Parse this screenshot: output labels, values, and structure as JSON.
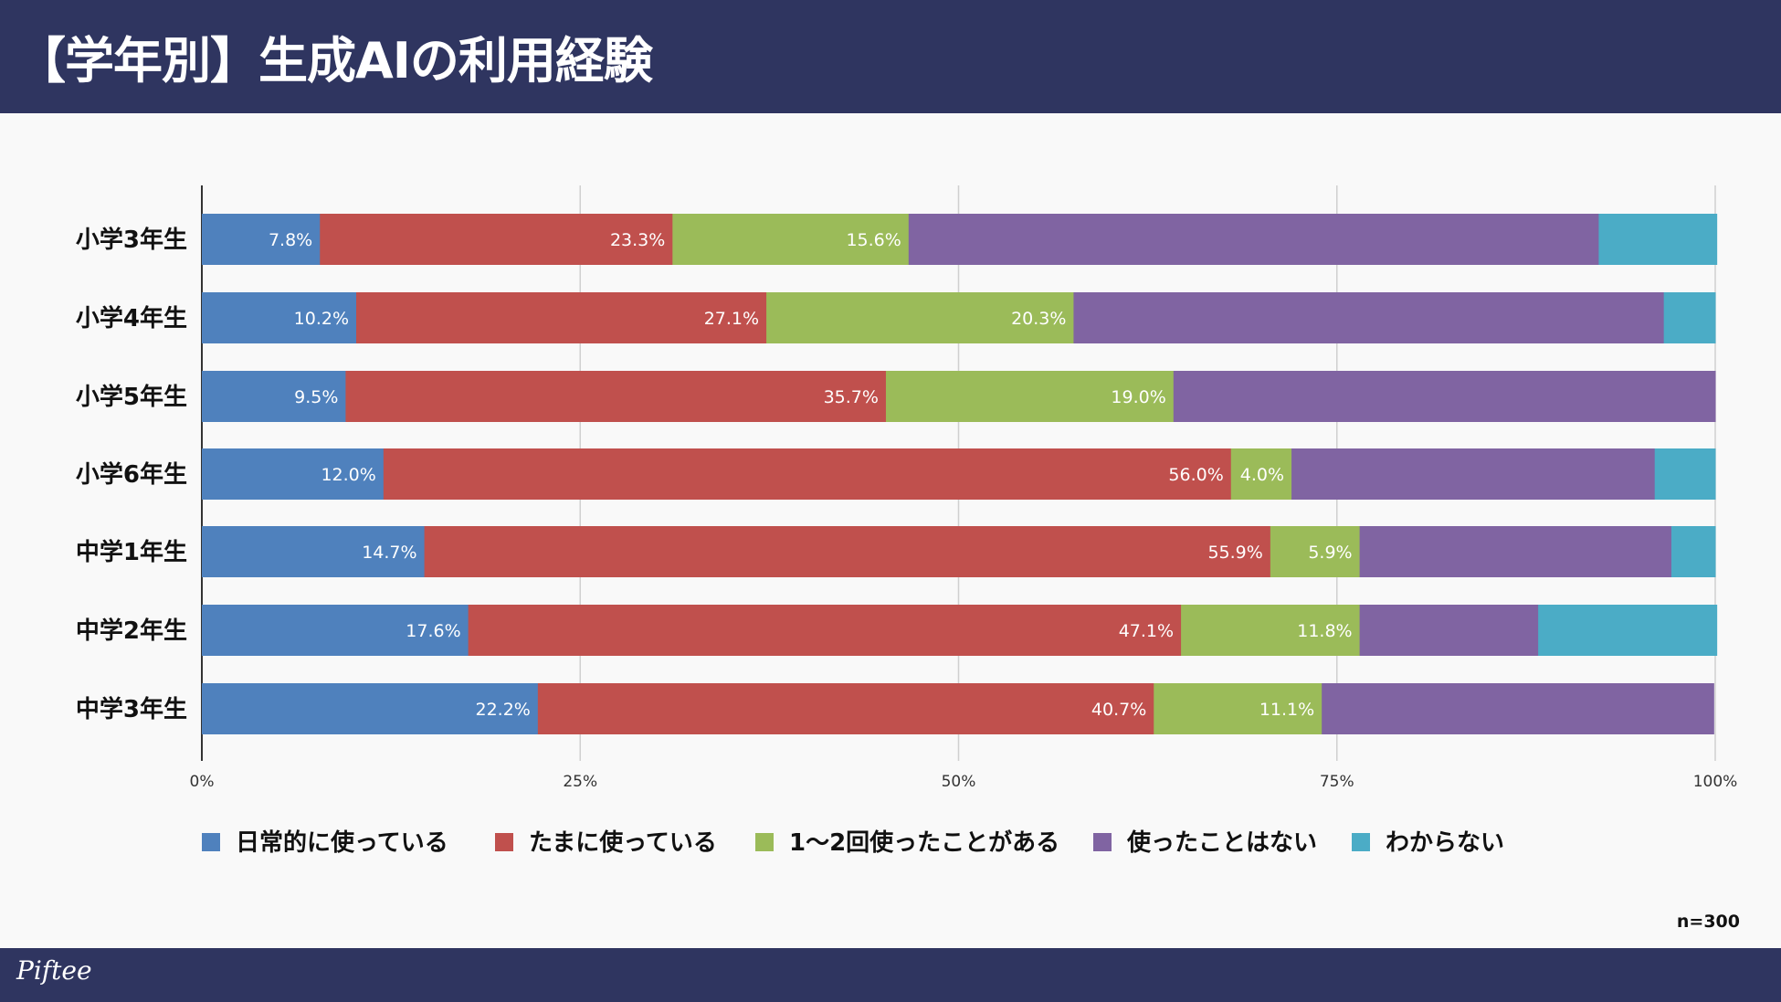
{
  "header": {
    "title": "【学年別】生成AIの利用経験"
  },
  "footer": {
    "logo": "Piftee"
  },
  "chart_data": {
    "type": "bar",
    "orientation": "horizontal",
    "stacked": true,
    "title": "【学年別】生成AIの利用経験",
    "categories": [
      "小学3年生",
      "小学4年生",
      "小学5年生",
      "小学6年生",
      "中学1年生",
      "中学2年生",
      "中学3年生"
    ],
    "series": [
      {
        "name": "日常的に使っている",
        "color": "#4f81bd",
        "values": [
          7.8,
          10.2,
          9.5,
          12.0,
          14.7,
          17.6,
          22.2
        ],
        "labeled": true
      },
      {
        "name": "たまに使っている",
        "color": "#c0504d",
        "values": [
          23.3,
          27.1,
          35.7,
          56.0,
          55.9,
          47.1,
          40.7
        ],
        "labeled": true
      },
      {
        "name": "1〜2回使ったことがある",
        "color": "#9bbb59",
        "values": [
          15.6,
          20.3,
          19.0,
          4.0,
          5.9,
          11.8,
          11.1
        ],
        "labeled": true
      },
      {
        "name": "使ったことはない",
        "color": "#8064a2",
        "values": [
          45.6,
          39.0,
          35.8,
          24.0,
          20.6,
          11.8,
          25.9
        ],
        "labeled": false
      },
      {
        "name": "わからない",
        "color": "#4bacc6",
        "values": [
          7.8,
          3.4,
          0,
          4.0,
          2.9,
          11.8,
          0
        ],
        "labeled": false
      }
    ],
    "xticks": [
      "0%",
      "25%",
      "50%",
      "75%",
      "100%"
    ],
    "xlim": [
      0,
      100
    ],
    "grid": true,
    "legend": "bottom",
    "note": "n=300"
  }
}
